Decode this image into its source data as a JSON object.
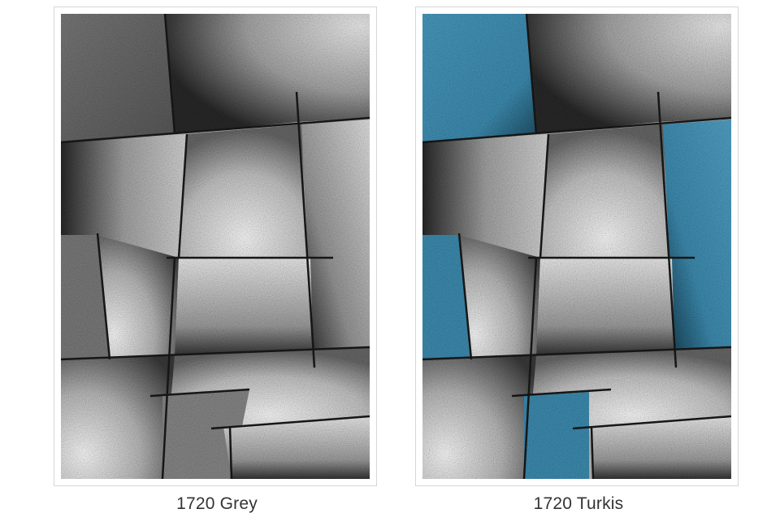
{
  "products": [
    {
      "caption": "1720 Grey"
    },
    {
      "caption": "1720 Turkis"
    }
  ],
  "colors": {
    "accent_blue": "#3f8fb4",
    "line": "#161616",
    "mid_grey": "#8c8c8c"
  }
}
